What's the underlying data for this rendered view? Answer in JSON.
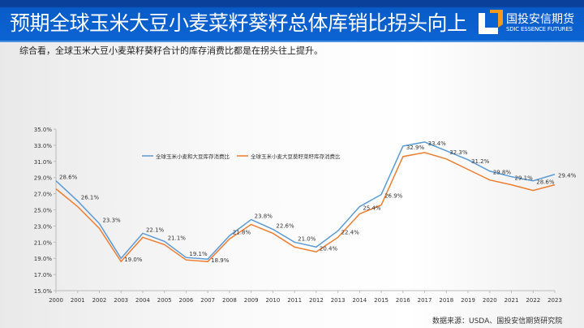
{
  "header": {
    "title": "预期全球玉米大豆小麦菜籽葵籽总体库销比拐头向上",
    "logo_cn": "国投安信期货",
    "logo_en": "SDIC ESSENCE FUTURES"
  },
  "summary": "综合看，全球玉米大豆小麦菜籽葵籽合计的库存消费比都是在拐头往上提升。",
  "source": "数据来源：USDA、国投安信期货研究院",
  "chart_data": {
    "type": "line",
    "categories": [
      "2000",
      "2001",
      "2002",
      "2003",
      "2004",
      "2005",
      "2006",
      "2007",
      "2008",
      "2009",
      "2010",
      "2011",
      "2012",
      "2013",
      "2014",
      "2015",
      "2016",
      "2017",
      "2018",
      "2019",
      "2020",
      "2021",
      "2022",
      "2023"
    ],
    "ylim": [
      15,
      35
    ],
    "yticks": [
      "15.0%",
      "17.0%",
      "19.0%",
      "21.0%",
      "23.0%",
      "25.0%",
      "27.0%",
      "29.0%",
      "31.0%",
      "33.0%",
      "35.0%"
    ],
    "legend_position": "top",
    "series": [
      {
        "name": "全球玉米小麦和大豆库存消费比",
        "color": "#5b9bd5",
        "values": [
          28.6,
          26.1,
          23.3,
          19.0,
          22.1,
          21.1,
          19.1,
          18.9,
          21.8,
          23.8,
          22.6,
          21.0,
          20.4,
          22.4,
          25.4,
          26.9,
          32.9,
          33.4,
          32.3,
          31.2,
          29.8,
          29.1,
          28.6,
          29.4
        ],
        "labels": [
          "28.6%",
          "26.1%",
          "23.3%",
          "19.0%",
          "22.1%",
          "21.1%",
          "19.1%",
          "18.9%",
          "21.8%",
          "23.8%",
          "22.6%",
          "21.0%",
          "20.4%",
          "22.4%",
          "25.4%",
          "26.9%",
          "32.9%",
          "33.4%",
          "32.3%",
          "31.2%",
          "29.8%",
          "29.1%",
          "28.6%",
          "29.4%"
        ]
      },
      {
        "name": "全球玉米小麦大豆葵籽菜籽库存消费比",
        "color": "#ed7d31",
        "values": [
          27.6,
          25.4,
          22.7,
          18.6,
          21.6,
          20.7,
          18.8,
          18.6,
          21.4,
          23.2,
          22.1,
          20.4,
          19.8,
          21.6,
          24.5,
          25.6,
          31.6,
          32.1,
          31.3,
          30.0,
          28.7,
          28.1,
          27.4,
          28.1
        ]
      }
    ]
  }
}
